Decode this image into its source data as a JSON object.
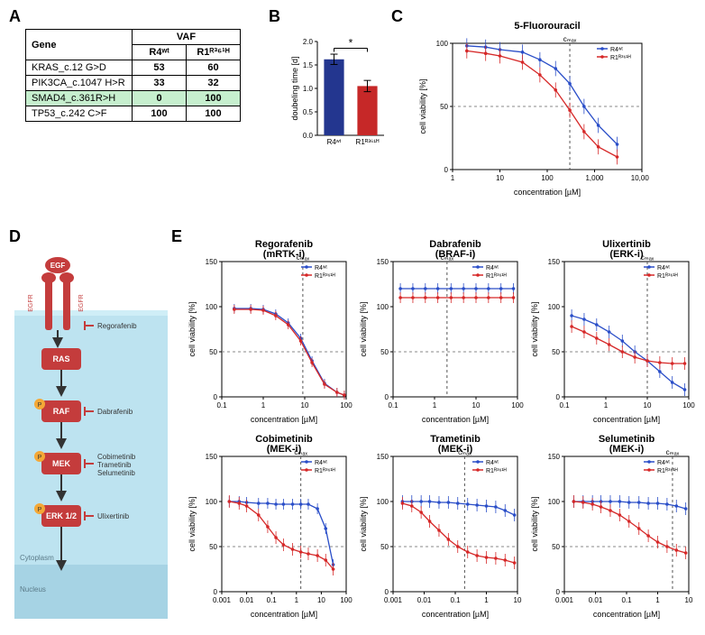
{
  "labels": {
    "A": "A",
    "B": "B",
    "C": "C",
    "D": "D",
    "E": "E"
  },
  "colors": {
    "r4": "#2a4ec8",
    "r1": "#d62828",
    "barBlue": "#23368f",
    "barRed": "#c62828",
    "axis": "#000000",
    "grid": "#999999",
    "hlRow": "#c6efce",
    "membrane_top": "#cfeef7",
    "cytoplasm": "#bde3f0",
    "nucleus": "#a6d3e4",
    "pathway_box": "#c43c3c",
    "egf_color": "#c43c3c"
  },
  "legend": {
    "r4": "R4ʷᵗ",
    "r1": "R1ᴿ³⁶¹ᴴ"
  },
  "panelA": {
    "header": {
      "gene": "Gene",
      "vaf": "VAF",
      "c1": "R4ʷᵗ",
      "c2": "R1ᴿ³⁶¹ᴴ"
    },
    "rows": [
      {
        "gene": "KRAS_c.12 G>D",
        "v1": "53",
        "v2": "60",
        "hl": false
      },
      {
        "gene": "PIK3CA_c.1047 H>R",
        "v1": "33",
        "v2": "32",
        "hl": false
      },
      {
        "gene": "SMAD4_c.361R>H",
        "v1": "0",
        "v2": "100",
        "hl": true
      },
      {
        "gene": "TP53_c.242 C>F",
        "v1": "100",
        "v2": "100",
        "hl": false
      }
    ]
  },
  "panelB": {
    "ylabel": "doubeling time [d]",
    "ymax": 2.0,
    "ytick_step": 0.5,
    "cats": [
      "R4ʷᵗ",
      "R1ᴿ³⁶¹ᴴ"
    ],
    "vals": [
      1.62,
      1.05
    ],
    "errs": [
      0.11,
      0.12
    ],
    "sig": "*"
  },
  "panelC": {
    "title": "5-Fluorouracil",
    "xlabel": "concentration [µM]",
    "ylabel": "cell viability [%]",
    "xlog_min": 1,
    "xlog_max": 10000,
    "ylim": [
      0,
      100
    ],
    "ytick_step": 50,
    "xticks": [
      1,
      10,
      100,
      1000,
      10000
    ],
    "cmax": 300,
    "r4": {
      "x": [
        2,
        5,
        10,
        30,
        70,
        150,
        300,
        600,
        1200,
        3000
      ],
      "y": [
        98,
        97,
        95,
        93,
        87,
        80,
        68,
        50,
        35,
        20
      ],
      "err": 6
    },
    "r1": {
      "x": [
        2,
        5,
        10,
        30,
        70,
        150,
        300,
        600,
        1200,
        3000
      ],
      "y": [
        94,
        92,
        90,
        85,
        75,
        63,
        47,
        30,
        18,
        10
      ],
      "err": 6
    }
  },
  "panelD": {
    "egf": "EGF",
    "egfr": "EGFR",
    "boxes": [
      "RAS",
      "RAF",
      "MEK",
      "ERK 1/2"
    ],
    "inhibitors": {
      "Regorafenib": "Regorafenib",
      "Dabrafenib": "Dabrafenib",
      "MEKi": "Cobimetinib\nTrametinib\nSelumetinib",
      "Ulixertinib": "Ulixertinib"
    },
    "regions": {
      "cyto": "Cytoplasm",
      "nuc": "Nucleus"
    }
  },
  "panelE_common": {
    "xlabel": "concentration [µM]",
    "ylabel": "cell viability [%]",
    "ylim": [
      0,
      150
    ],
    "ytick_step": 50
  },
  "panelE": [
    {
      "title": "Regorafenib",
      "sub": "(mRTK-i)",
      "xlog_min": 0.1,
      "xlog_max": 100,
      "xticks": [
        0.1,
        1,
        10,
        100
      ],
      "cmax": 9,
      "r4": {
        "x": [
          0.2,
          0.5,
          1,
          2,
          4,
          8,
          15,
          30,
          60,
          90
        ],
        "y": [
          98,
          98,
          97,
          92,
          82,
          65,
          40,
          15,
          5,
          2
        ],
        "err": 5
      },
      "r1": {
        "x": [
          0.2,
          0.5,
          1,
          2,
          4,
          8,
          15,
          30,
          60,
          90
        ],
        "y": [
          97,
          97,
          96,
          90,
          80,
          62,
          38,
          14,
          5,
          2
        ],
        "err": 5
      }
    },
    {
      "title": "Dabrafenib",
      "sub": "(BRAF-i)",
      "xlog_min": 0.1,
      "xlog_max": 100,
      "xticks": [
        0.1,
        1,
        10,
        100
      ],
      "cmax": 2,
      "r4": {
        "x": [
          0.15,
          0.3,
          0.6,
          1.2,
          2.5,
          5,
          10,
          20,
          40,
          80
        ],
        "y": [
          120,
          120,
          120,
          120,
          120,
          120,
          120,
          120,
          120,
          120
        ],
        "err": 6
      },
      "r1": {
        "x": [
          0.15,
          0.3,
          0.6,
          1.2,
          2.5,
          5,
          10,
          20,
          40,
          80
        ],
        "y": [
          110,
          110,
          110,
          110,
          110,
          110,
          110,
          110,
          110,
          110
        ],
        "err": 6
      }
    },
    {
      "title": "Ulixertinib",
      "sub": "(ERK-i)",
      "xlog_min": 0.1,
      "xlog_max": 100,
      "xticks": [
        0.1,
        1,
        10,
        100
      ],
      "cmax": 10,
      "r4": {
        "x": [
          0.15,
          0.3,
          0.6,
          1.2,
          2.5,
          5,
          10,
          20,
          40,
          80
        ],
        "y": [
          90,
          86,
          80,
          72,
          62,
          50,
          40,
          28,
          16,
          8
        ],
        "err": 7
      },
      "r1": {
        "x": [
          0.15,
          0.3,
          0.6,
          1.2,
          2.5,
          5,
          10,
          20,
          40,
          80
        ],
        "y": [
          78,
          72,
          65,
          58,
          50,
          44,
          40,
          38,
          37,
          37
        ],
        "err": 7
      }
    },
    {
      "title": "Cobimetinib",
      "sub": "(MEK-i)",
      "xlog_min": 0.001,
      "xlog_max": 100,
      "xticks": [
        0.001,
        0.01,
        0.1,
        1,
        10,
        100
      ],
      "cmax": 1.5,
      "r4": {
        "x": [
          0.002,
          0.005,
          0.01,
          0.03,
          0.07,
          0.15,
          0.3,
          0.7,
          1.5,
          3,
          7,
          15,
          30
        ],
        "y": [
          100,
          100,
          99,
          98,
          98,
          97,
          97,
          97,
          97,
          97,
          92,
          70,
          30
        ],
        "err": 6
      },
      "r1": {
        "x": [
          0.002,
          0.005,
          0.01,
          0.03,
          0.07,
          0.15,
          0.3,
          0.7,
          1.5,
          3,
          7,
          15,
          30
        ],
        "y": [
          100,
          98,
          95,
          85,
          72,
          60,
          52,
          47,
          44,
          42,
          40,
          35,
          25
        ],
        "err": 7
      }
    },
    {
      "title": "Trametinib",
      "sub": "(MEK-i)",
      "xlog_min": 0.001,
      "xlog_max": 10,
      "xticks": [
        0.001,
        0.01,
        0.1,
        1,
        10
      ],
      "cmax": 0.2,
      "r4": {
        "x": [
          0.002,
          0.004,
          0.008,
          0.015,
          0.03,
          0.06,
          0.12,
          0.25,
          0.5,
          1,
          2,
          4,
          8
        ],
        "y": [
          100,
          100,
          100,
          100,
          99,
          99,
          98,
          97,
          96,
          95,
          94,
          90,
          85
        ],
        "err": 7
      },
      "r1": {
        "x": [
          0.002,
          0.004,
          0.008,
          0.015,
          0.03,
          0.06,
          0.12,
          0.25,
          0.5,
          1,
          2,
          4,
          8
        ],
        "y": [
          98,
          95,
          88,
          78,
          68,
          58,
          50,
          44,
          40,
          38,
          37,
          35,
          32
        ],
        "err": 7
      }
    },
    {
      "title": "Selumetinib",
      "sub": "(MEK-i)",
      "xlog_min": 0.001,
      "xlog_max": 10,
      "xticks": [
        0.001,
        0.01,
        0.1,
        1,
        10
      ],
      "cmax": 3,
      "r4": {
        "x": [
          0.002,
          0.004,
          0.008,
          0.015,
          0.03,
          0.06,
          0.12,
          0.25,
          0.5,
          1,
          2,
          4,
          8
        ],
        "y": [
          100,
          100,
          100,
          100,
          100,
          100,
          99,
          99,
          98,
          98,
          97,
          95,
          92
        ],
        "err": 7
      },
      "r1": {
        "x": [
          0.002,
          0.004,
          0.008,
          0.015,
          0.03,
          0.06,
          0.12,
          0.25,
          0.5,
          1,
          2,
          4,
          8
        ],
        "y": [
          100,
          99,
          97,
          94,
          90,
          85,
          78,
          70,
          62,
          55,
          50,
          46,
          43
        ],
        "err": 7
      }
    }
  ],
  "cmax_label": "cₘₐₓ"
}
